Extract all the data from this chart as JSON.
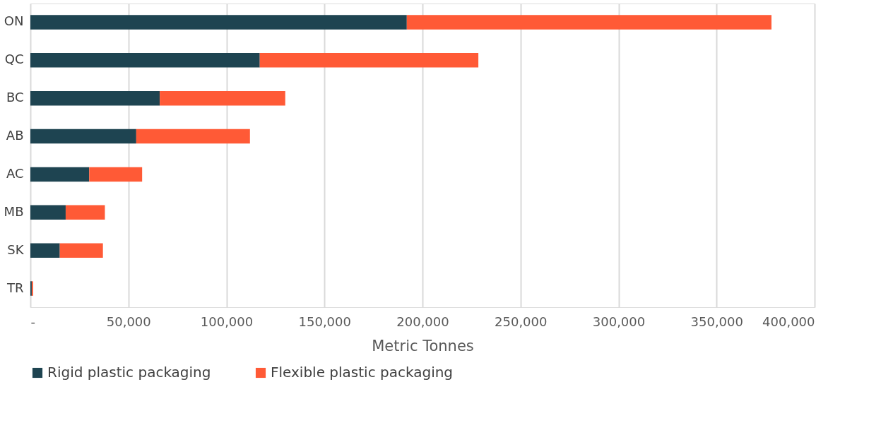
{
  "chart_data": {
    "type": "bar",
    "orientation": "horizontal",
    "stacked": true,
    "xlabel": "Metric Tonnes",
    "categories": [
      "ON",
      "QC",
      "BC",
      "AB",
      "AC",
      "MB",
      "SK",
      "TR"
    ],
    "series": [
      {
        "name": "Rigid plastic packaging",
        "color": "#1e4451",
        "values": [
          192000,
          117000,
          66000,
          54000,
          30000,
          18000,
          15000,
          700
        ]
      },
      {
        "name": "Flexible  plastic packaging",
        "color": "#ff5a36",
        "values": [
          186000,
          111500,
          64000,
          58000,
          27000,
          20000,
          22000,
          700
        ]
      }
    ],
    "xlim": [
      0,
      400000
    ],
    "xticks": [
      {
        "value": 0,
        "label": "-"
      },
      {
        "value": 50000,
        "label": "50,000"
      },
      {
        "value": 100000,
        "label": "100,000"
      },
      {
        "value": 150000,
        "label": "150,000"
      },
      {
        "value": 200000,
        "label": "200,000"
      },
      {
        "value": 250000,
        "label": "250,000"
      },
      {
        "value": 300000,
        "label": "300,000"
      },
      {
        "value": 350000,
        "label": "350,000"
      },
      {
        "value": 400000,
        "label": "400,000"
      }
    ],
    "grid": "x",
    "legend": "bottom"
  }
}
